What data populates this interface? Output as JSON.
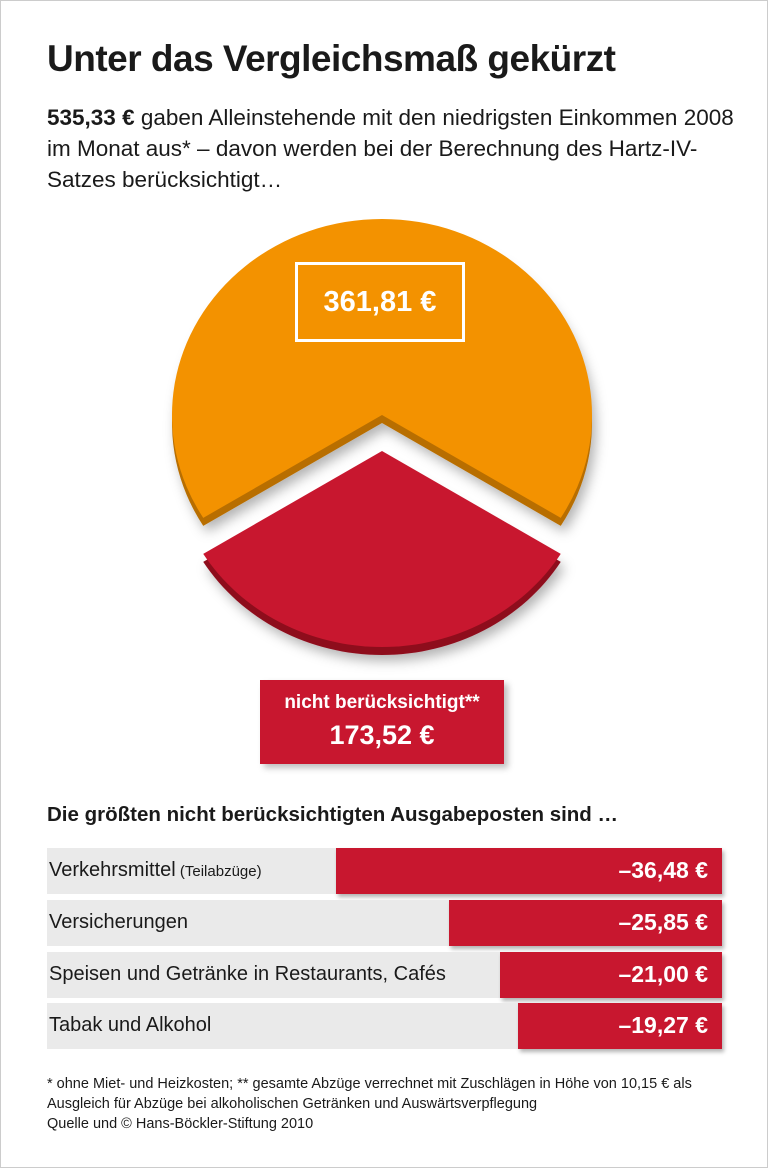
{
  "title": "Unter das Vergleichsmaß gekürzt",
  "subtitle": {
    "bold": "535,33 €",
    "rest": " gaben Alleinstehende mit den niedrigsten Einkommen 2008 im Monat aus* – davon werden bei der Berechnung des Hartz-IV-Satzes berücksichtigt…"
  },
  "colors": {
    "orange": "#f39200",
    "red": "#c8172f"
  },
  "chart_data": [
    {
      "type": "pie",
      "total": 535.33,
      "slices": [
        {
          "label": "361,81 €",
          "value": 361.81,
          "color": "#f39200"
        },
        {
          "label": "nicht berücksichtigt**",
          "value_label": "173,52 €",
          "value": 173.52,
          "color": "#c8172f",
          "exploded": true
        }
      ]
    },
    {
      "type": "bar",
      "orientation": "horizontal",
      "title": "Die größten nicht berücksichtigten Ausgabeposten sind …",
      "categories": [
        "Verkehrsmittel",
        "Versicherungen",
        "Speisen und Getränke in Restaurants, Cafés",
        "Tabak und Alkohol"
      ],
      "category_notes": [
        "(Teilabzüge)",
        "",
        "",
        ""
      ],
      "values": [
        -36.48,
        -25.85,
        -21.0,
        -19.27
      ],
      "value_labels": [
        "–36,48 €",
        "–25,85 €",
        "–21,00 €",
        "–19,27 €"
      ]
    }
  ],
  "footnotes": [
    "* ohne Miet- und Heizkosten; ** gesamte Abzüge verrechnet mit Zuschlägen in Höhe von 10,15 € als Ausgleich für Abzüge bei alkoholischen Getränken und Auswärtsverpflegung",
    "Quelle und © Hans-Böckler-Stiftung 2010"
  ]
}
